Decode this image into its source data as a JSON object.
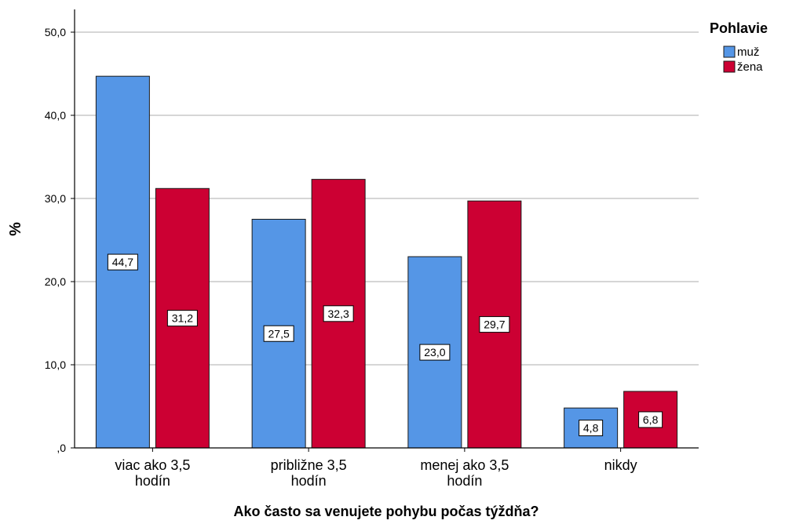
{
  "chart_data": {
    "type": "bar",
    "categories": [
      [
        "viac ako 3,5",
        "hodín"
      ],
      [
        "približne 3,5",
        "hodín"
      ],
      [
        "menej ako 3,5",
        "hodín"
      ],
      [
        "nikdy"
      ]
    ],
    "series": [
      {
        "name": "muž",
        "color": "#5596e6",
        "values": [
          44.7,
          27.5,
          23.0,
          4.8
        ],
        "labels": [
          "44,7",
          "27,5",
          "23,0",
          "4,8"
        ]
      },
      {
        "name": "žena",
        "color": "#cc0033",
        "values": [
          31.2,
          32.3,
          29.7,
          6.8
        ],
        "labels": [
          "31,2",
          "32,3",
          "29,7",
          "6,8"
        ]
      }
    ],
    "title": "",
    "xlabel": "Ako často sa venujete pohybu počas týždňa?",
    "ylabel": "%",
    "ylim": [
      0,
      50
    ],
    "yticks": [
      0,
      10,
      20,
      30,
      40,
      50
    ],
    "ytick_labels": [
      ",0",
      "10,0",
      "20,0",
      "30,0",
      "40,0",
      "50,0"
    ],
    "grid": true,
    "legend": {
      "title": "Pohlavie",
      "position": "top-right"
    }
  }
}
